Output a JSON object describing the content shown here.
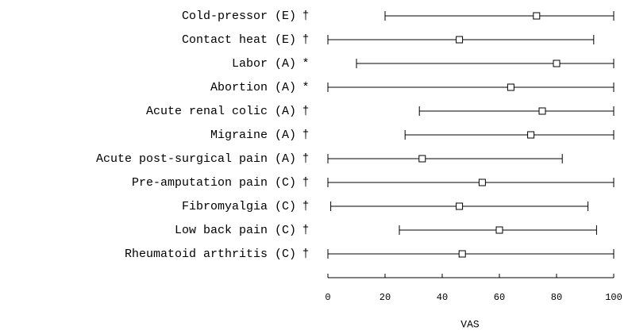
{
  "chart_data": {
    "type": "range",
    "categories": [
      "Cold-pressor (E)",
      "Contact heat (E)",
      "Labor (A)",
      "Abortion (A)",
      "Acute renal colic (A)",
      "Migraine (A)",
      "Acute post-surgical pain (A)",
      "Pre-amputation pain (C)",
      "Fibromyalgia (C)",
      "Low back pain (C)",
      "Rheumatoid arthritis (C)"
    ],
    "markers": [
      "†",
      "†",
      "*",
      "*",
      "†",
      "†",
      "†",
      "†",
      "†",
      "†",
      "†"
    ],
    "low": [
      20,
      0,
      10,
      0,
      32,
      27,
      0,
      0,
      1,
      25,
      0
    ],
    "values": [
      73,
      46,
      80,
      64,
      75,
      71,
      33,
      54,
      46,
      60,
      47
    ],
    "high": [
      100,
      93,
      100,
      100,
      100,
      100,
      82,
      100,
      91,
      94,
      100
    ],
    "color": "#000000",
    "xlim": [
      0,
      100
    ],
    "xticks": [
      0,
      20,
      40,
      60,
      80,
      100
    ],
    "xlabel": "VAS"
  }
}
